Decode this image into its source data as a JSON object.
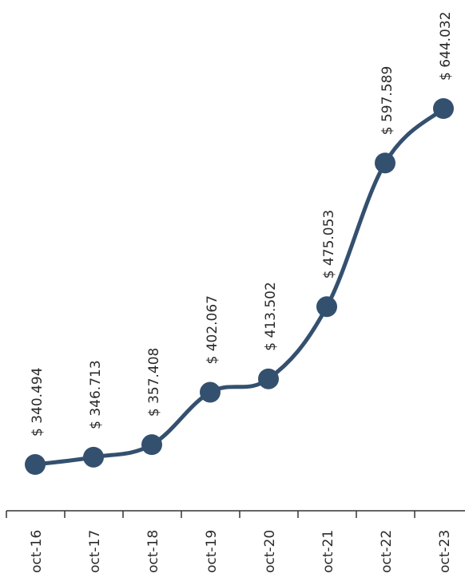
{
  "chart_data": {
    "type": "line",
    "orientation": "rotated-90-ccw",
    "categories": [
      "oct-16",
      "oct-17",
      "oct-18",
      "oct-19",
      "oct-20",
      "oct-21",
      "oct-22",
      "oct-23"
    ],
    "values": [
      340.494,
      346.713,
      357.408,
      402.067,
      413.502,
      475.053,
      597.589,
      644.032
    ],
    "data_labels": [
      "$ 340.494",
      "$ 346.713",
      "$ 357.408",
      "$ 402.067",
      "$ 413.502",
      "$ 475.053",
      "$ 597.589",
      "$ 644.032"
    ],
    "title": "",
    "xlabel": "",
    "ylabel": "",
    "grid": false,
    "legend": "none",
    "colors": {
      "series": "#34506f",
      "axis": "#333333",
      "text": "#2a2a2a"
    }
  }
}
